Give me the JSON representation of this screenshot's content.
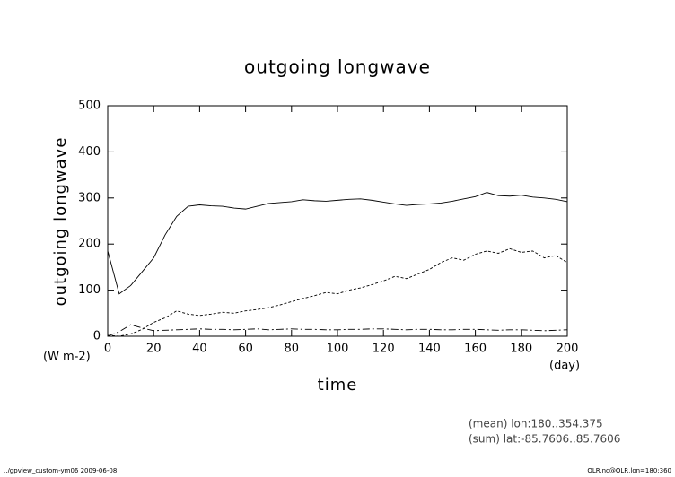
{
  "chart_data": {
    "type": "line",
    "title": "outgoing longwave",
    "y_label": "outgoing longwave",
    "y_unit": "(W m-2)",
    "x_label": "time",
    "x_unit": "(day)",
    "annotations": [
      "(mean) lon:180..354.375",
      "(sum) lat:-85.7606..85.7606"
    ],
    "footer_left": "../gpview_custom-ym06  2009-06-08",
    "footer_right": "OLR.nc@OLR,lon=180:360",
    "x": [
      0,
      5,
      10,
      15,
      20,
      25,
      30,
      35,
      40,
      45,
      50,
      55,
      60,
      65,
      70,
      75,
      80,
      85,
      90,
      95,
      100,
      105,
      110,
      115,
      120,
      125,
      130,
      135,
      140,
      145,
      150,
      155,
      160,
      165,
      170,
      175,
      180,
      185,
      190,
      195,
      200
    ],
    "series": [
      {
        "color": "#000000",
        "dash": "none",
        "values": [
          185,
          92,
          110,
          140,
          170,
          220,
          260,
          282,
          285,
          283,
          282,
          278,
          276,
          282,
          288,
          290,
          292,
          296,
          294,
          293,
          295,
          297,
          298,
          295,
          291,
          287,
          284,
          286,
          287,
          289,
          293,
          298,
          303,
          312,
          305,
          304,
          306,
          302,
          300,
          297,
          292
        ]
      },
      {
        "color": "#000000",
        "dash": "3,2",
        "values": [
          2,
          0,
          5,
          15,
          30,
          40,
          55,
          48,
          45,
          48,
          52,
          50,
          55,
          58,
          62,
          68,
          75,
          82,
          88,
          95,
          92,
          100,
          105,
          112,
          120,
          130,
          125,
          135,
          145,
          160,
          170,
          165,
          178,
          185,
          180,
          190,
          182,
          185,
          170,
          175,
          160
        ]
      },
      {
        "color": "#000000",
        "dash": "8,3,2,3",
        "values": [
          0,
          10,
          25,
          18,
          12,
          13,
          14,
          15,
          16,
          15,
          15,
          14,
          15,
          16,
          14,
          15,
          16,
          15,
          15,
          14,
          14,
          15,
          15,
          16,
          16,
          15,
          14,
          15,
          15,
          14,
          14,
          15,
          15,
          14,
          13,
          14,
          14,
          13,
          12,
          13,
          14
        ]
      }
    ],
    "xlim": [
      0,
      200
    ],
    "xticks": [
      0,
      20,
      40,
      60,
      80,
      100,
      120,
      140,
      160,
      180,
      200
    ],
    "ylim": [
      0,
      500
    ],
    "yticks": [
      0,
      100,
      200,
      300,
      400,
      500
    ]
  }
}
